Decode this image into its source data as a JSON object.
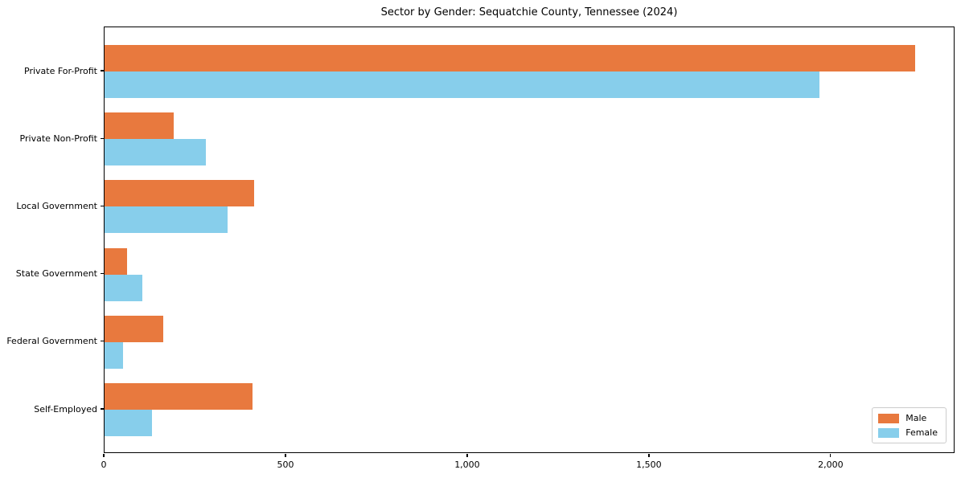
{
  "chart_data": {
    "type": "bar",
    "orientation": "horizontal",
    "title": "Sector by Gender: Sequatchie County, Tennessee (2024)",
    "categories": [
      "Private For-Profit",
      "Private Non-Profit",
      "Local Government",
      "State Government",
      "Federal Government",
      "Self-Employed"
    ],
    "series": [
      {
        "name": "Male",
        "color": "#e8793e",
        "values": [
          2230,
          190,
          412,
          62,
          162,
          408
        ]
      },
      {
        "name": "Female",
        "color": "#87ceeb",
        "values": [
          1968,
          279,
          339,
          103,
          51,
          131
        ]
      }
    ],
    "xlabel": "",
    "ylabel": "",
    "xlim": [
      0,
      2341
    ],
    "x_ticks": [
      0,
      500,
      1000,
      1500,
      2000
    ],
    "x_tick_labels": [
      "0",
      "500",
      "1,000",
      "1,500",
      "2,000"
    ],
    "grid": false,
    "legend_position": "lower right",
    "spine_color": "#000000",
    "background_color": "#ffffff"
  }
}
